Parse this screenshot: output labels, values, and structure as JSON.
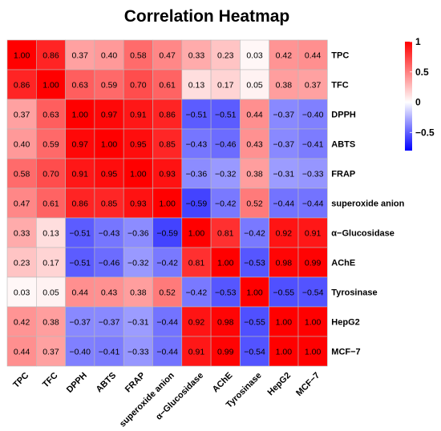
{
  "chart_data": {
    "type": "heatmap",
    "title": "Correlation Heatmap",
    "rows": [
      "TPC",
      "TFC",
      "DPPH",
      "ABTS",
      "FRAP",
      "superoxide anion",
      "α−Glucosidase",
      "AChE",
      "Tyrosinase",
      "HepG2",
      "MCF−7"
    ],
    "columns": [
      "TPC",
      "TFC",
      "DPPH",
      "ABTS",
      "FRAP",
      "superoxide anion",
      "α−Glucosidase",
      "AChE",
      "Tyrosinase",
      "HepG2",
      "MCF−7"
    ],
    "values": [
      [
        1.0,
        0.86,
        0.37,
        0.4,
        0.58,
        0.47,
        0.33,
        0.23,
        0.03,
        0.42,
        0.44
      ],
      [
        0.86,
        1.0,
        0.63,
        0.59,
        0.7,
        0.61,
        0.13,
        0.17,
        0.05,
        0.38,
        0.37
      ],
      [
        0.37,
        0.63,
        1.0,
        0.97,
        0.91,
        0.86,
        -0.51,
        -0.51,
        0.44,
        -0.37,
        -0.4
      ],
      [
        0.4,
        0.59,
        0.97,
        1.0,
        0.95,
        0.85,
        -0.43,
        -0.46,
        0.43,
        -0.37,
        -0.41
      ],
      [
        0.58,
        0.7,
        0.91,
        0.95,
        1.0,
        0.93,
        -0.36,
        -0.32,
        0.38,
        -0.31,
        -0.33
      ],
      [
        0.47,
        0.61,
        0.86,
        0.85,
        0.93,
        1.0,
        -0.59,
        -0.42,
        0.52,
        -0.44,
        -0.44
      ],
      [
        0.33,
        0.13,
        -0.51,
        -0.43,
        -0.36,
        -0.59,
        1.0,
        0.81,
        -0.42,
        0.92,
        0.91
      ],
      [
        0.23,
        0.17,
        -0.51,
        -0.46,
        -0.32,
        -0.42,
        0.81,
        1.0,
        -0.53,
        0.98,
        0.99
      ],
      [
        0.03,
        0.05,
        0.44,
        0.43,
        0.38,
        0.52,
        -0.42,
        -0.53,
        1.0,
        -0.55,
        -0.54
      ],
      [
        0.42,
        0.38,
        -0.37,
        -0.37,
        -0.31,
        -0.44,
        0.92,
        0.98,
        -0.55,
        1.0,
        1.0
      ],
      [
        0.44,
        0.37,
        -0.4,
        -0.41,
        -0.33,
        -0.44,
        0.91,
        0.99,
        -0.54,
        1.0,
        1.0
      ]
    ],
    "color_scale": {
      "min": -0.8,
      "max": 1.0,
      "low": "#0000ff",
      "mid": "#ffffff",
      "high": "#ff0000"
    },
    "legend": {
      "placement": "right",
      "ticks": [
        {
          "value": 1.0,
          "label": "1"
        },
        {
          "value": 0.5,
          "label": "0.5"
        },
        {
          "value": 0.0,
          "label": "0"
        },
        {
          "value": -0.5,
          "label": "−0.5"
        }
      ]
    }
  }
}
